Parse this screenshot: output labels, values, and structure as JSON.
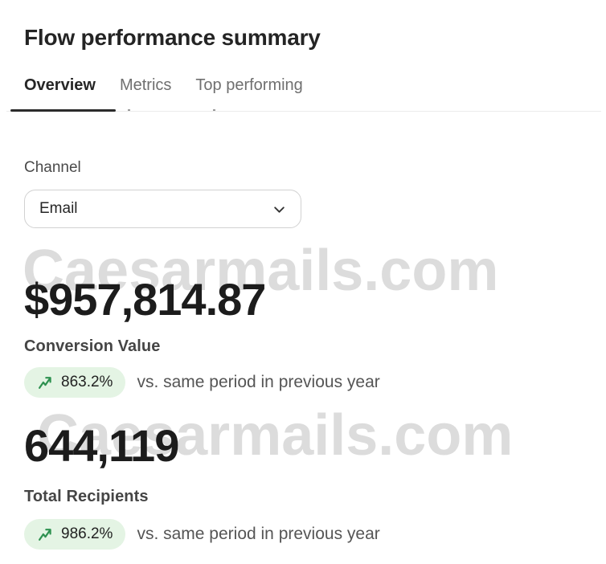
{
  "header": {
    "title": "Flow performance summary"
  },
  "tabs": {
    "items": [
      {
        "label": "Overview",
        "active": true
      },
      {
        "label": "Metrics",
        "active": false
      },
      {
        "label": "Top performing",
        "active": false
      }
    ]
  },
  "filter": {
    "label": "Channel",
    "selected_value": "Email",
    "icon": "chevron-down-icon"
  },
  "metrics": [
    {
      "value": "$957,814.87",
      "label": "Conversion Value",
      "change": "863.2%",
      "trend": "up",
      "trend_icon": "trending-up-icon",
      "comparison": "vs. same period in previous year"
    },
    {
      "value": "644,119",
      "label": "Total Recipients",
      "change": "986.2%",
      "trend": "up",
      "trend_icon": "trending-up-icon",
      "comparison": "vs. same period in previous year"
    }
  ],
  "watermark": {
    "text": "Caesarmails.com"
  },
  "colors": {
    "badge_background": "#e4f4e4",
    "trend_green": "#2e9150",
    "active_tab_text": "#262626",
    "inactive_tab_text": "#6f6f6f",
    "tab_underline": "#2b2b2b",
    "watermark_gray": "#dcdcdc",
    "value_text": "#1c1c1c"
  }
}
